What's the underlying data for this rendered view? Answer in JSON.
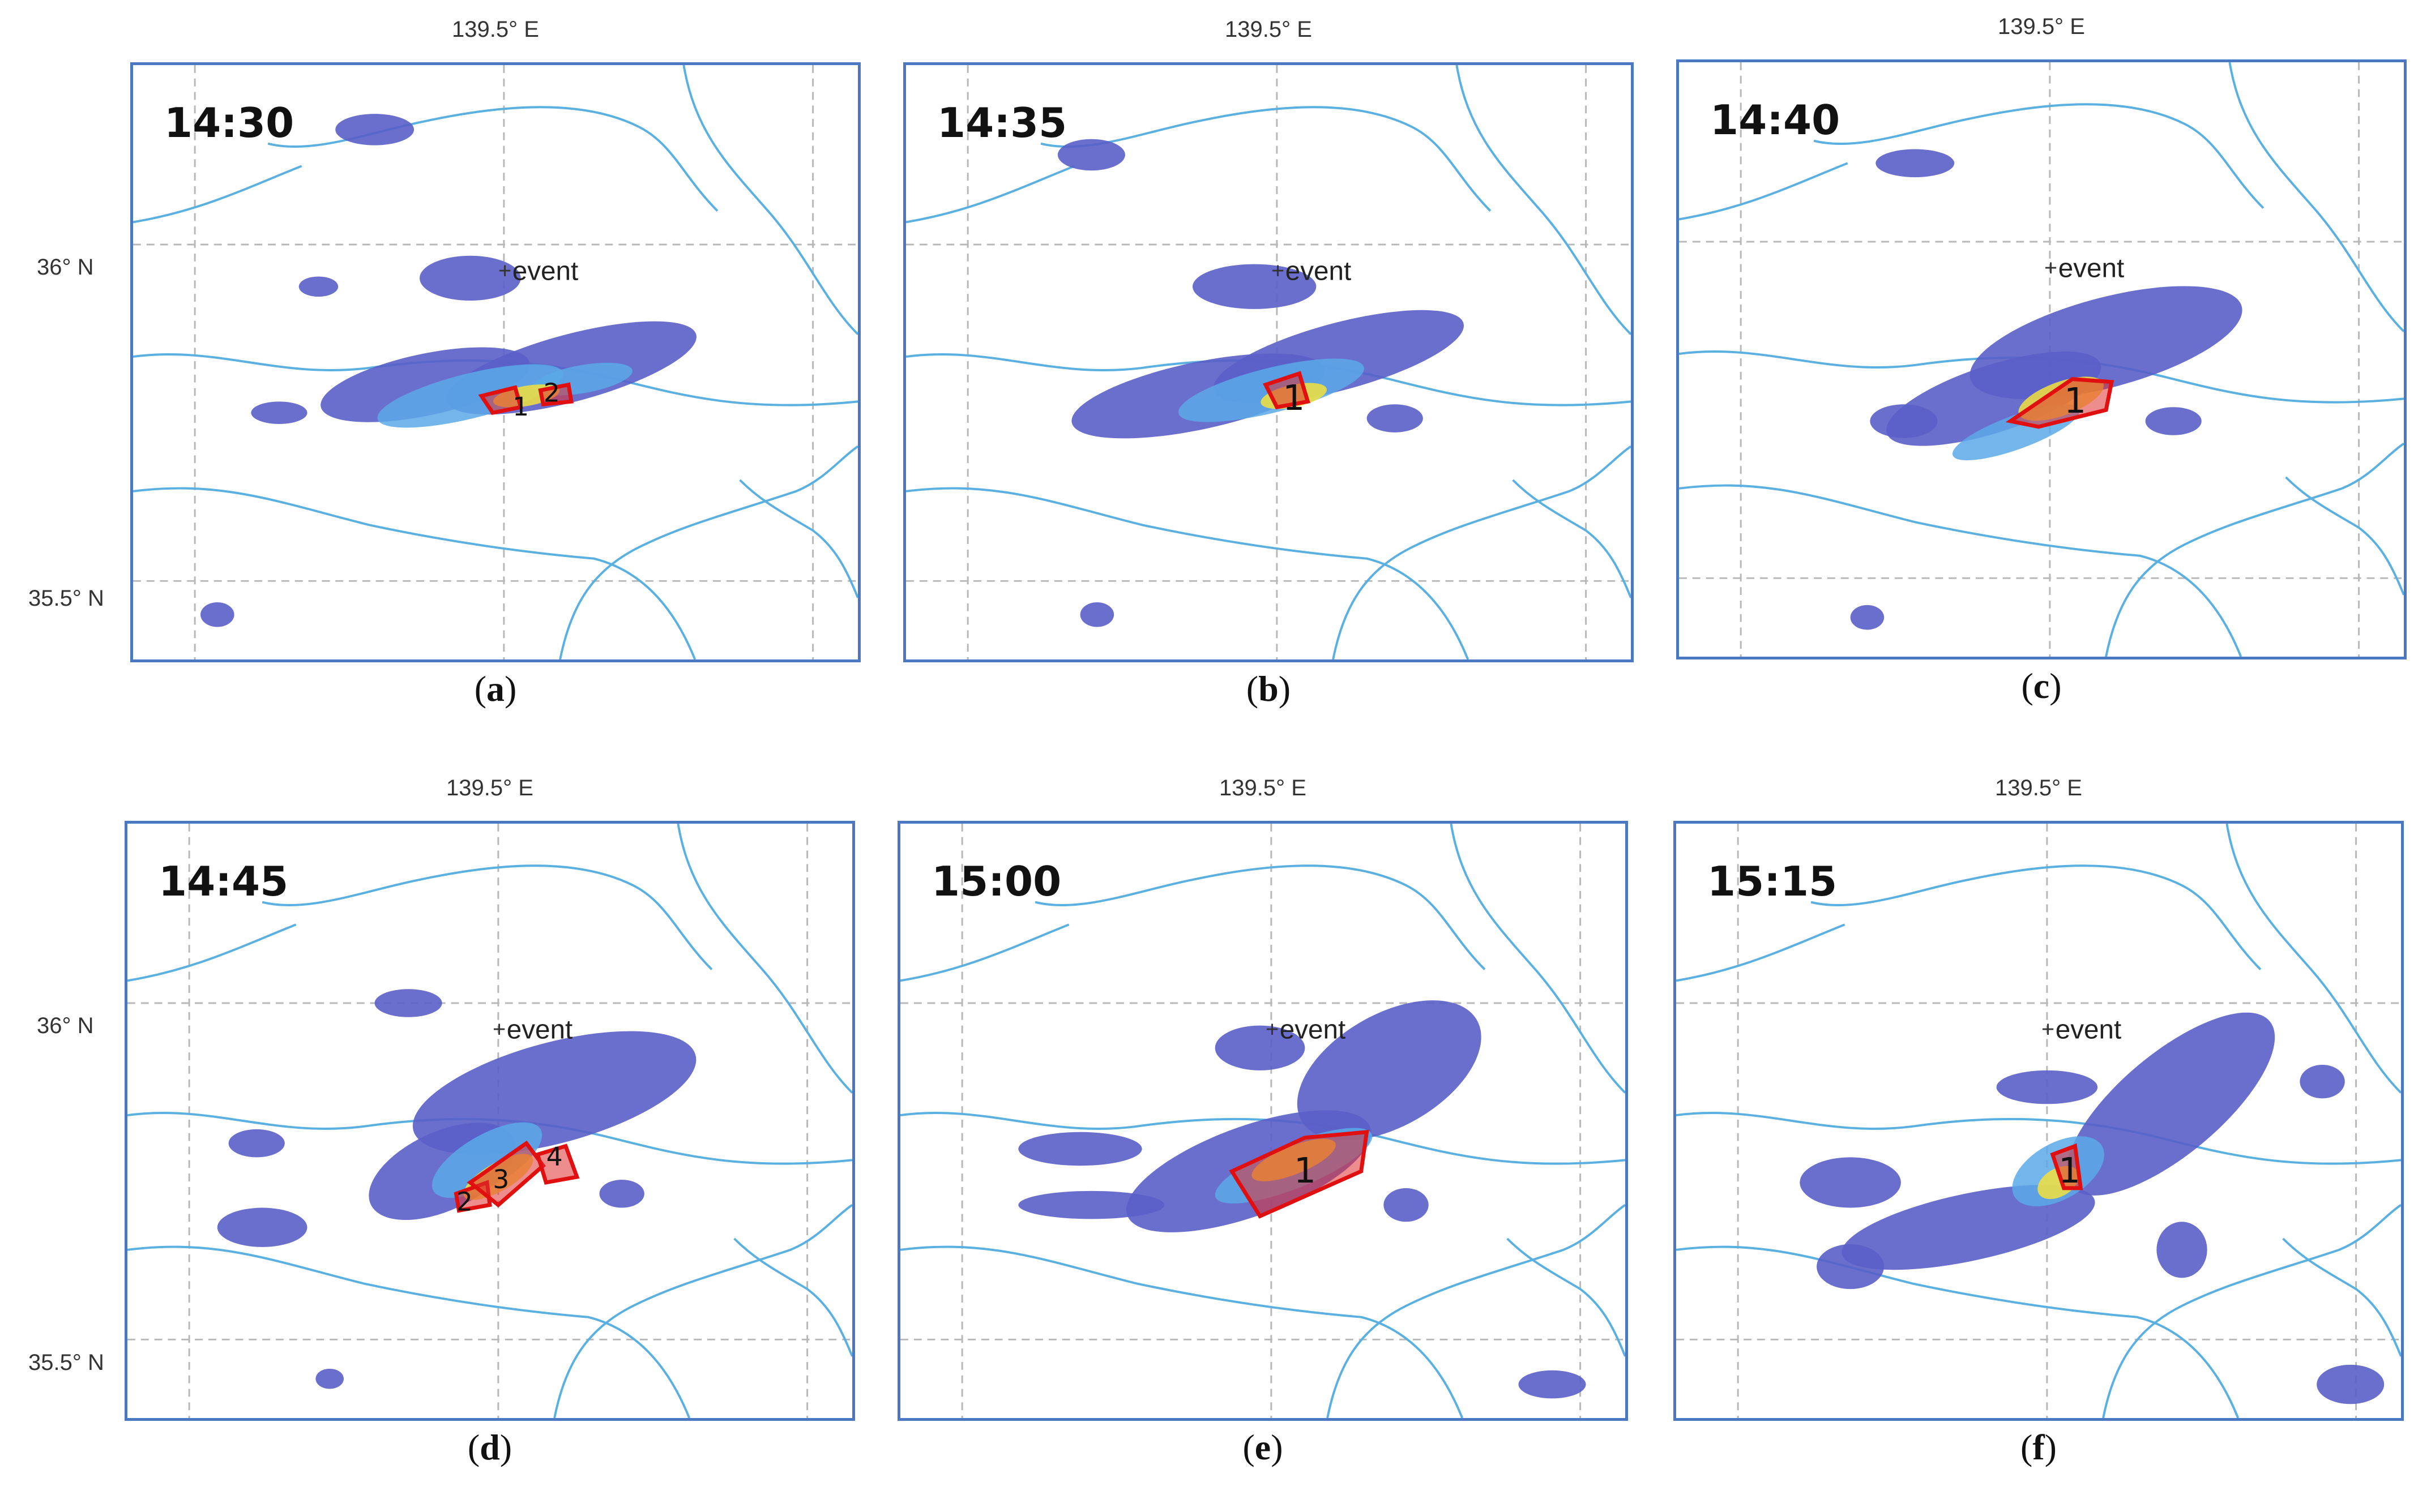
{
  "axis": {
    "lon_label": "139.5° E",
    "lat_top": "36° N",
    "lat_bottom": "35.5° N"
  },
  "event_label": "event",
  "colors": {
    "frame": "#4a78c2",
    "coast": "#5ab0e0",
    "grid": "#b8b8b8",
    "radar_low": "#5a5fc8",
    "radar_mid": "#5aa9e8",
    "radar_high": "#f2e23c",
    "cell_outline": "#e01010",
    "cell_fill": "#e03030"
  },
  "panels": [
    {
      "time": "14:30",
      "caption_letter": "a",
      "cells": [
        "1",
        "2"
      ]
    },
    {
      "time": "14:35",
      "caption_letter": "b",
      "cells": [
        "1"
      ]
    },
    {
      "time": "14:40",
      "caption_letter": "c",
      "cells": [
        "1"
      ]
    },
    {
      "time": "14:45",
      "caption_letter": "d",
      "cells": [
        "2",
        "3",
        "4"
      ]
    },
    {
      "time": "15:00",
      "caption_letter": "e",
      "cells": [
        "1"
      ]
    },
    {
      "time": "15:15",
      "caption_letter": "f",
      "cells": [
        "1"
      ]
    }
  ]
}
